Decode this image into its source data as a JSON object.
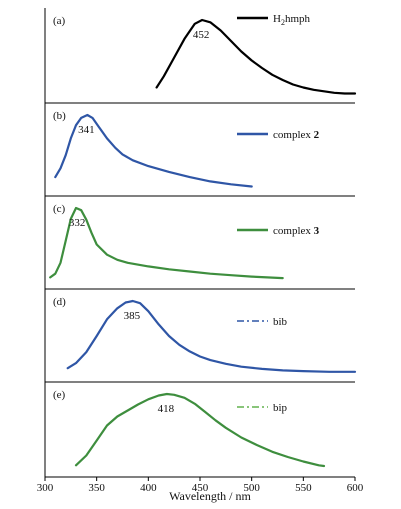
{
  "chart_data": {
    "type": "line",
    "xlabel": "Wavelength / nm",
    "xlim": [
      300,
      600
    ],
    "xticks": [
      300,
      350,
      400,
      450,
      500,
      550,
      600
    ],
    "grid": false,
    "panels": [
      {
        "label": "(a)",
        "peak": 452,
        "peak_label": "452",
        "legend": {
          "text": "H",
          "sub": "2",
          "rest": "hmph",
          "bold": "",
          "style": "solid",
          "color": "#000000"
        },
        "series": {
          "color": "#000000",
          "style": "solid",
          "x": [
            408,
            415,
            425,
            435,
            445,
            452,
            460,
            470,
            480,
            490,
            500,
            510,
            520,
            530,
            540,
            550,
            560,
            570,
            580,
            590,
            600
          ],
          "y": [
            0.1,
            0.25,
            0.5,
            0.75,
            0.95,
            1.0,
            0.97,
            0.86,
            0.72,
            0.58,
            0.46,
            0.36,
            0.27,
            0.2,
            0.14,
            0.1,
            0.07,
            0.05,
            0.03,
            0.02,
            0.02
          ]
        }
      },
      {
        "label": "(b)",
        "peak": 341,
        "peak_label": "341",
        "legend": {
          "text": "complex ",
          "sub": "",
          "rest": "",
          "bold": "2",
          "style": "solid",
          "color": "#2f56a6"
        },
        "series": {
          "color": "#2f56a6",
          "style": "solid",
          "x": [
            310,
            315,
            320,
            325,
            330,
            335,
            341,
            346,
            352,
            360,
            368,
            375,
            385,
            400,
            420,
            440,
            460,
            480,
            500
          ],
          "y": [
            0.15,
            0.27,
            0.45,
            0.68,
            0.86,
            0.96,
            1.0,
            0.96,
            0.84,
            0.68,
            0.55,
            0.46,
            0.38,
            0.3,
            0.22,
            0.15,
            0.09,
            0.05,
            0.02
          ]
        }
      },
      {
        "label": "(c)",
        "peak": 332,
        "peak_label": "332",
        "legend": {
          "text": "complex ",
          "sub": "",
          "rest": "",
          "bold": "3",
          "style": "solid",
          "color": "#3e8e3e"
        },
        "series": {
          "color": "#3e8e3e",
          "style": "solid",
          "x": [
            305,
            310,
            315,
            320,
            325,
            330,
            335,
            340,
            345,
            350,
            360,
            370,
            380,
            400,
            420,
            440,
            460,
            480,
            500,
            515,
            530
          ],
          "y": [
            0.05,
            0.1,
            0.25,
            0.55,
            0.85,
            1.0,
            0.97,
            0.84,
            0.66,
            0.5,
            0.36,
            0.29,
            0.25,
            0.2,
            0.16,
            0.13,
            0.1,
            0.08,
            0.06,
            0.05,
            0.04
          ]
        }
      },
      {
        "label": "(d)",
        "peak": 385,
        "peak_label": "385",
        "legend": {
          "text": "bib",
          "sub": "",
          "rest": "",
          "bold": "",
          "style": "dashdot",
          "color": "#2f56a6"
        },
        "series": {
          "color": "#2f56a6",
          "style": "solid",
          "x": [
            322,
            330,
            340,
            350,
            360,
            370,
            378,
            385,
            392,
            400,
            410,
            420,
            430,
            440,
            450,
            460,
            475,
            490,
            510,
            530,
            550,
            575,
            600
          ],
          "y": [
            0.08,
            0.15,
            0.3,
            0.52,
            0.75,
            0.9,
            0.98,
            1.0,
            0.97,
            0.86,
            0.68,
            0.52,
            0.4,
            0.31,
            0.24,
            0.19,
            0.14,
            0.1,
            0.07,
            0.05,
            0.04,
            0.03,
            0.03
          ]
        }
      },
      {
        "label": "(e)",
        "peak": 418,
        "peak_label": "418",
        "legend": {
          "text": "bip",
          "sub": "",
          "rest": "",
          "bold": "",
          "style": "dashdot",
          "color": "#62b24e"
        },
        "series": {
          "color": "#3e8e3e",
          "style": "solid",
          "x": [
            330,
            340,
            350,
            360,
            370,
            380,
            390,
            400,
            410,
            418,
            425,
            435,
            445,
            455,
            465,
            475,
            490,
            505,
            520,
            535,
            550,
            565,
            570
          ],
          "y": [
            0.05,
            0.18,
            0.38,
            0.58,
            0.7,
            0.78,
            0.86,
            0.93,
            0.98,
            1.0,
            0.99,
            0.95,
            0.87,
            0.76,
            0.65,
            0.55,
            0.42,
            0.32,
            0.23,
            0.16,
            0.1,
            0.05,
            0.04
          ]
        }
      }
    ]
  }
}
